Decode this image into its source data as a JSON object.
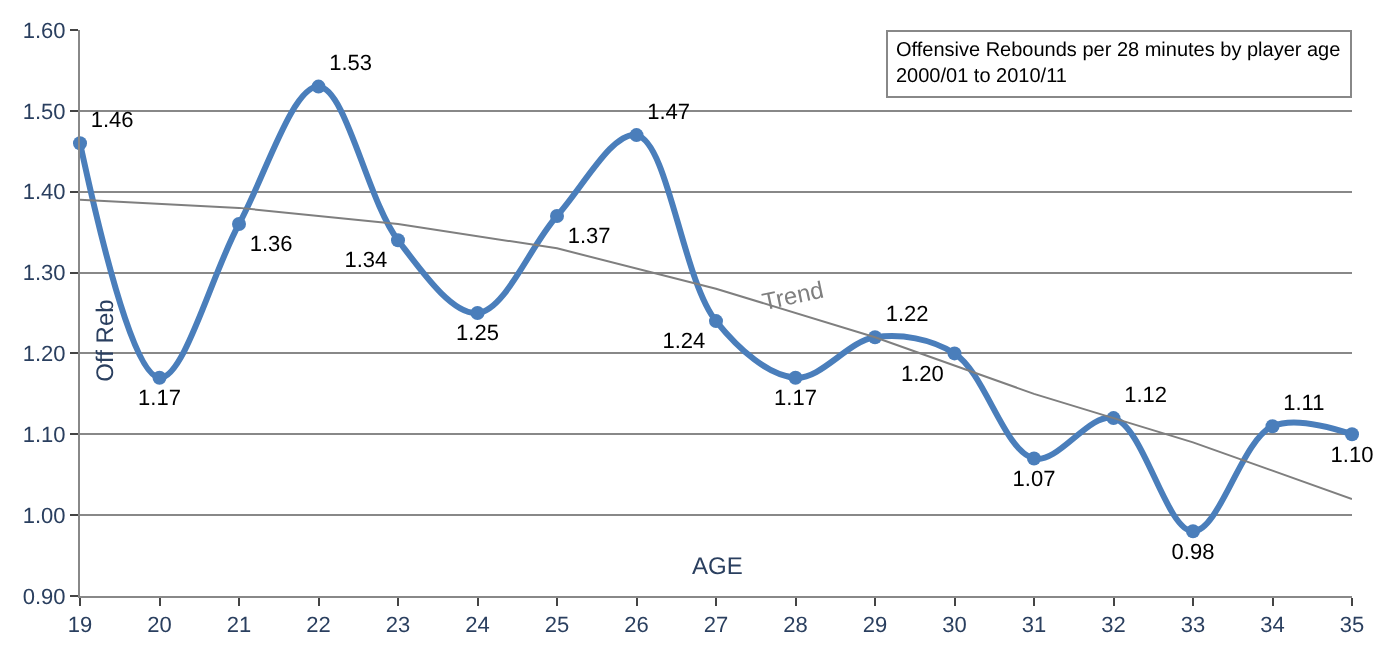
{
  "chart_data": {
    "type": "line",
    "title": "Offensive Rebounds per 28 minutes by player age\n2000/01 to 2010/11",
    "xlabel": "AGE",
    "ylabel": "Off Reb",
    "x": [
      19,
      20,
      21,
      22,
      23,
      24,
      25,
      26,
      27,
      28,
      29,
      30,
      31,
      32,
      33,
      34,
      35
    ],
    "series": [
      {
        "color": "#4a7ebb",
        "values": [
          1.46,
          1.17,
          1.36,
          1.53,
          1.34,
          1.25,
          1.37,
          1.47,
          1.24,
          1.17,
          1.22,
          1.2,
          1.07,
          1.12,
          0.98,
          1.11,
          1.1
        ],
        "marker": "circle",
        "value_labels": [
          "1.46",
          "1.17",
          "1.36",
          "1.53",
          "1.34",
          "1.25",
          "1.37",
          "1.47",
          "1.24",
          "1.17",
          "1.22",
          "1.20",
          "1.07",
          "1.12",
          "0.98",
          "1.11",
          "1.10"
        ]
      },
      {
        "type": "line",
        "color": "#7f7f7f",
        "x": [
          19,
          21,
          23,
          25,
          27,
          29,
          31,
          33,
          35
        ],
        "values": [
          1.39,
          1.38,
          1.36,
          1.33,
          1.28,
          1.22,
          1.15,
          1.09,
          1.02
        ],
        "marker": "none"
      }
    ],
    "annotations": [
      "Trend"
    ],
    "xlim": [
      19,
      35
    ],
    "xticks": [
      19,
      20,
      21,
      22,
      23,
      24,
      25,
      26,
      27,
      28,
      29,
      30,
      31,
      32,
      33,
      34,
      35
    ],
    "ylim": [
      0.9,
      1.6
    ],
    "yticks": [
      {
        "value": 0.9,
        "label": "0.90"
      },
      {
        "value": 1.0,
        "label": "1.00"
      },
      {
        "value": 1.1,
        "label": "1.10"
      },
      {
        "value": 1.2,
        "label": "1.20"
      },
      {
        "value": 1.3,
        "label": "1.30"
      },
      {
        "value": 1.4,
        "label": "1.40"
      },
      {
        "value": 1.5,
        "label": "1.50"
      },
      {
        "value": 1.6,
        "label": "1.60"
      }
    ],
    "grid": "y",
    "legend": false
  }
}
